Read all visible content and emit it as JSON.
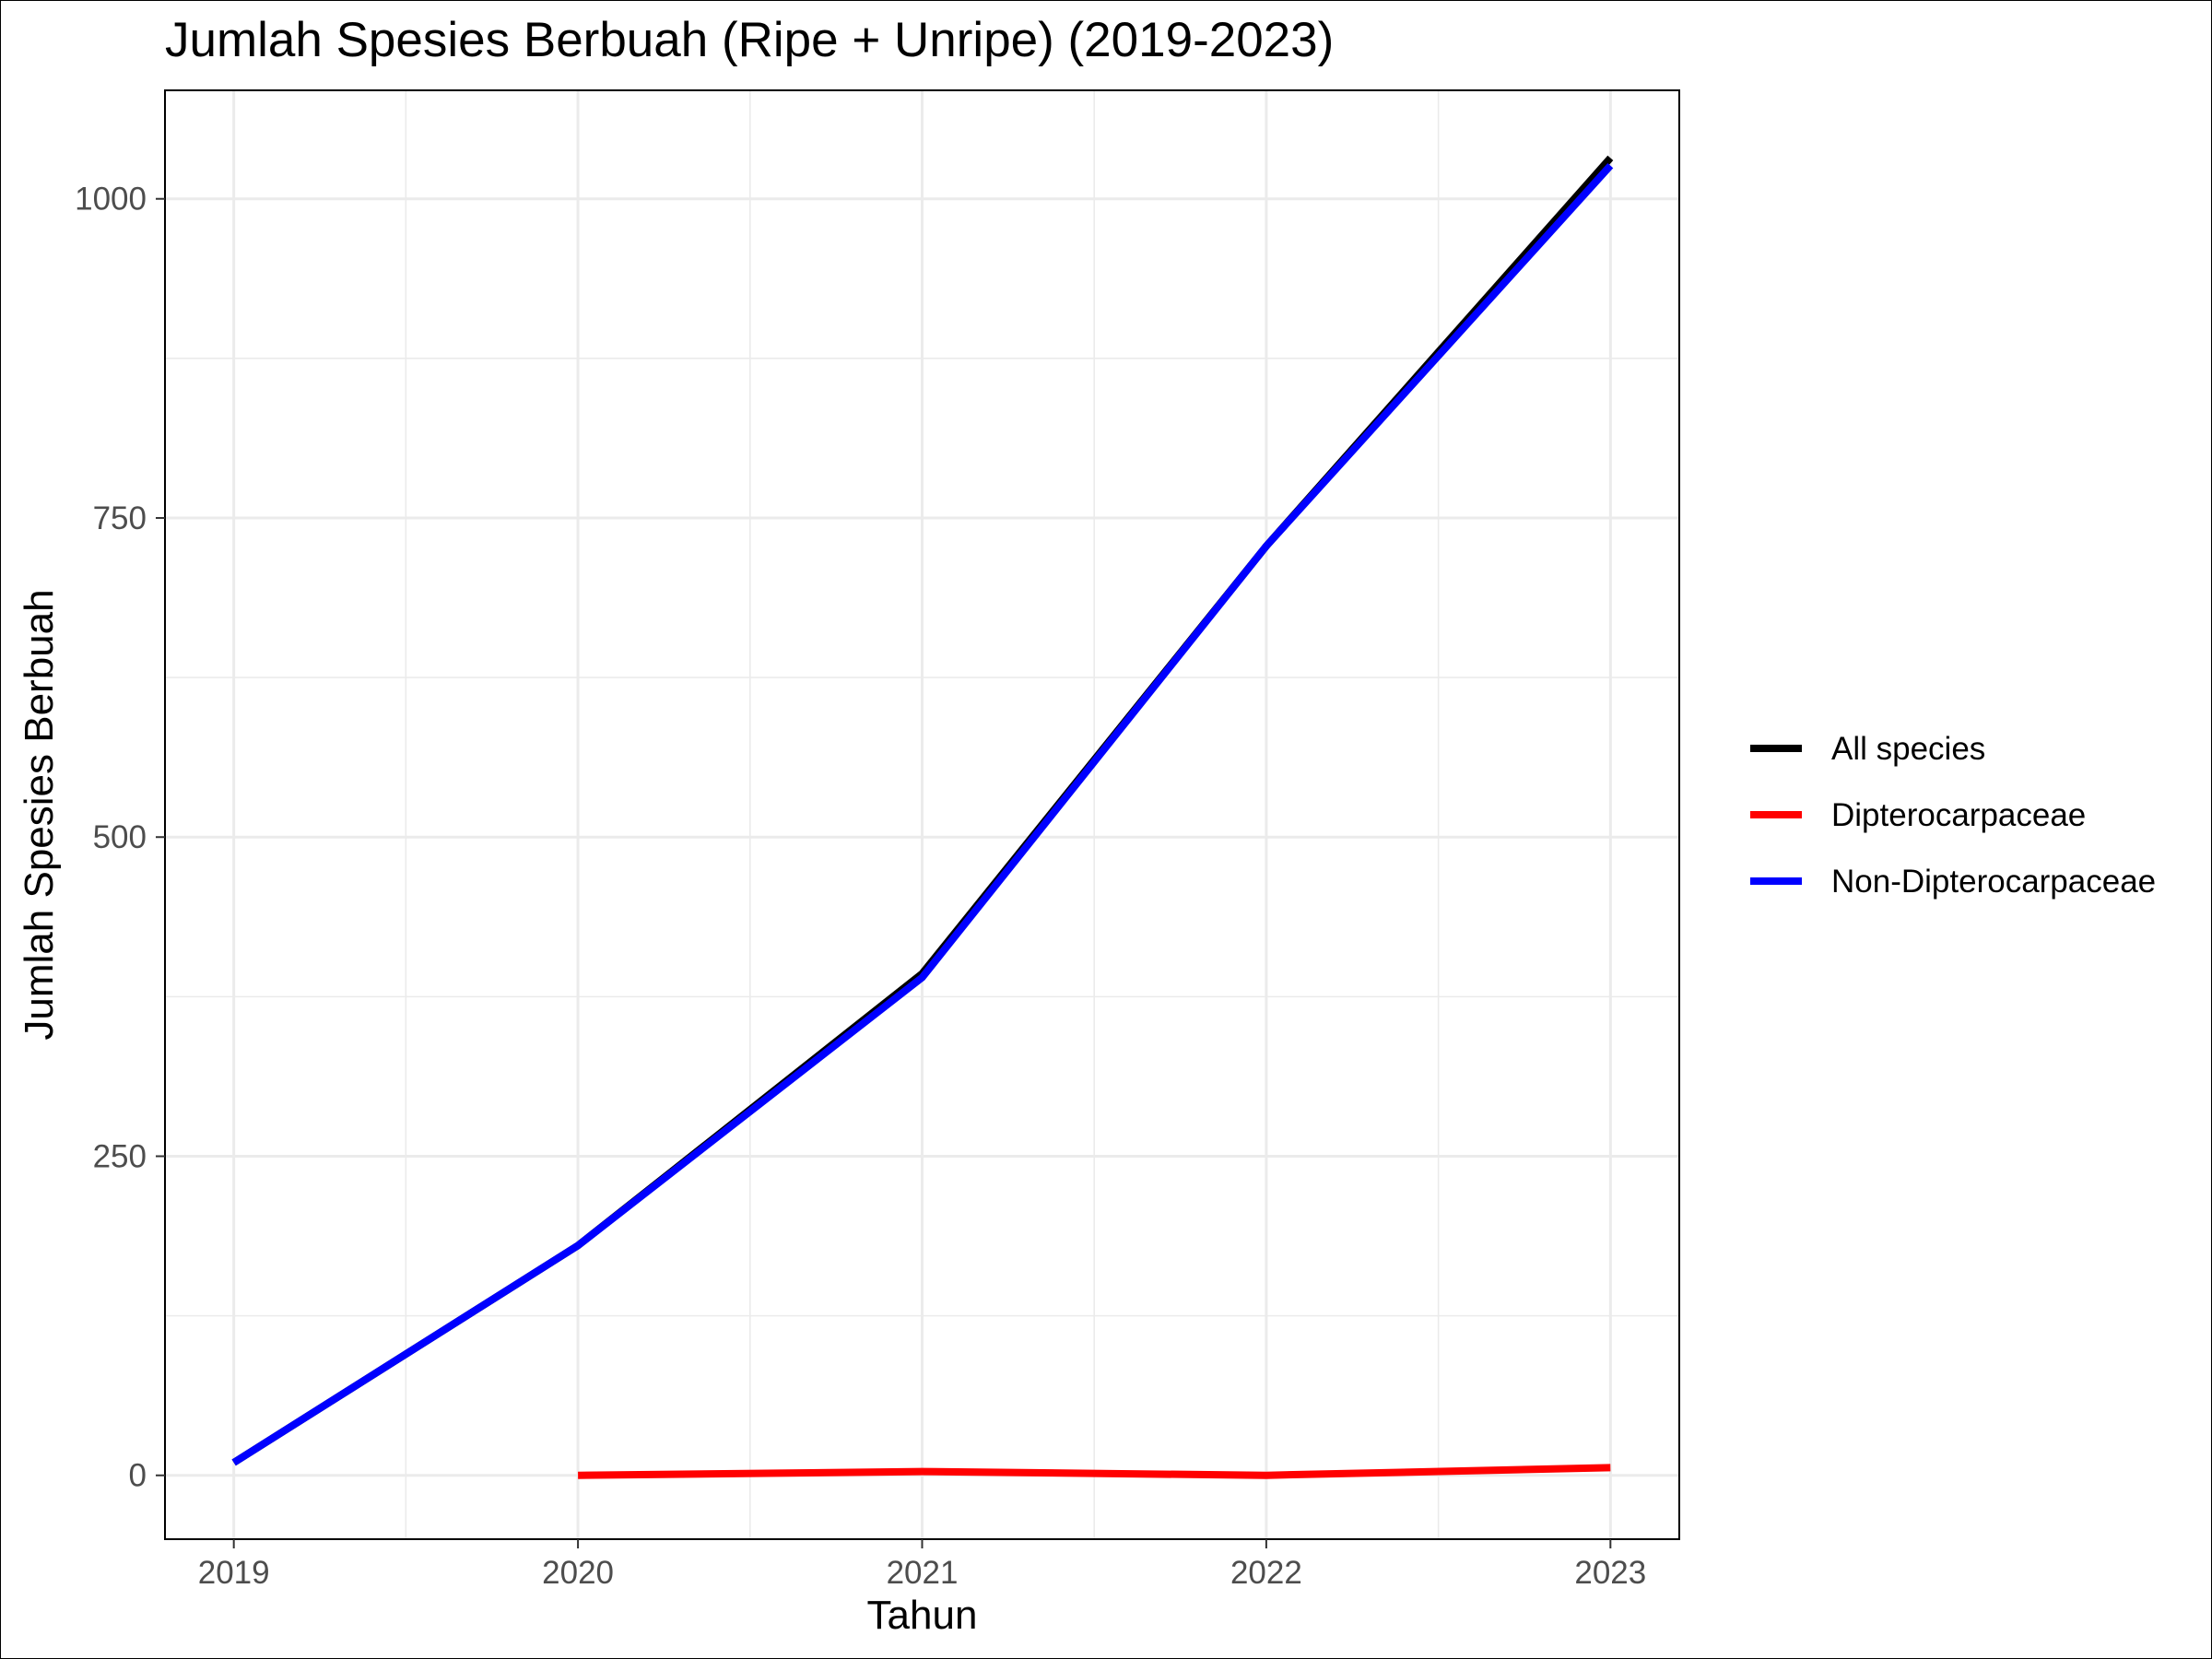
{
  "chart_data": {
    "type": "line",
    "title": "Jumlah Spesies Berbuah (Ripe + Unripe) (2019-2023)",
    "xlabel": "Tahun",
    "ylabel": "Jumlah Spesies Berbuah",
    "x_ticks": [
      "2019",
      "2020",
      "2021",
      "2022",
      "2023"
    ],
    "y_ticks": [
      "0",
      "250",
      "500",
      "750",
      "1000"
    ],
    "xlim": [
      2018.8,
      2023.2
    ],
    "ylim": [
      -50,
      1085
    ],
    "grid": true,
    "legend_position": "right",
    "series": [
      {
        "name": "All species",
        "color": "#000000",
        "x": [
          2019,
          2020,
          2021,
          2022,
          2023
        ],
        "y": [
          10,
          180,
          393,
          728,
          1032
        ]
      },
      {
        "name": "Dipterocarpaceae",
        "color": "#ff0000",
        "x": [
          2020,
          2021,
          2022,
          2023
        ],
        "y": [
          0,
          3,
          0,
          6
        ]
      },
      {
        "name": "Non-Dipterocarpaceae",
        "color": "#0000ff",
        "x": [
          2019,
          2020,
          2021,
          2022,
          2023
        ],
        "y": [
          10,
          180,
          390,
          728,
          1026
        ]
      }
    ]
  }
}
